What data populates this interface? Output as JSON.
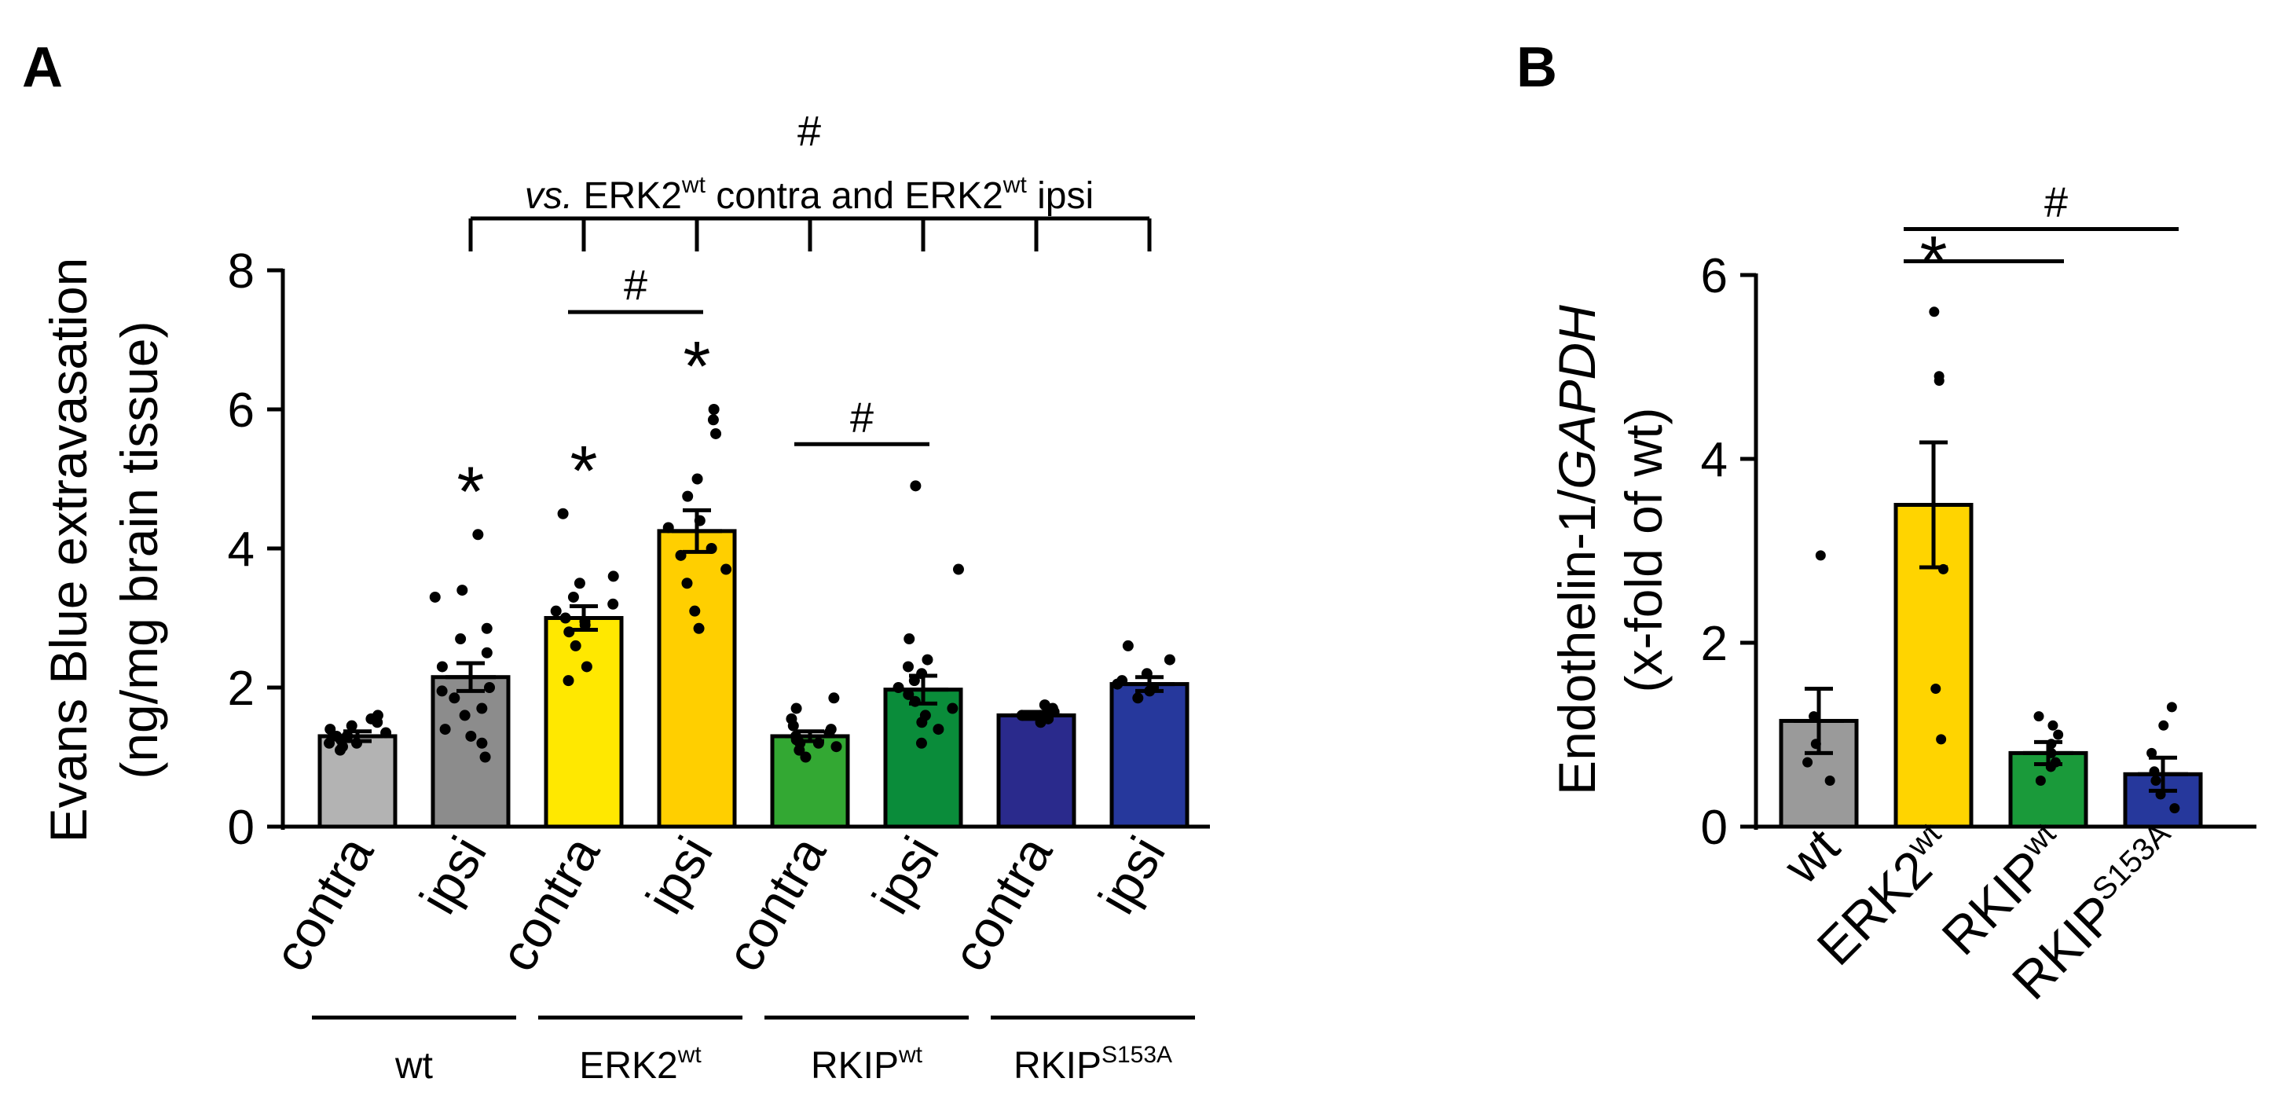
{
  "chart_data": [
    {
      "panel": "A",
      "type": "bar",
      "ylabel_line1": "Evans Blue extravasation",
      "ylabel_line2": "(ng/mg brain tissue)",
      "ylim": [
        0,
        8
      ],
      "yticks": [
        "0",
        "2",
        "4",
        "6",
        "8"
      ],
      "categories": [
        "contra",
        "ipsi",
        "contra",
        "ipsi",
        "contra",
        "ipsi",
        "contra",
        "ipsi"
      ],
      "values": [
        1.3,
        2.15,
        3.0,
        4.25,
        1.3,
        1.97,
        1.6,
        2.05
      ],
      "errors": [
        0.07,
        0.2,
        0.17,
        0.3,
        0.07,
        0.2,
        0.05,
        0.1
      ],
      "colors": [
        "#b3b3b3",
        "#8c8c8c",
        "#ffe800",
        "#ffcf00",
        "#33a833",
        "#0a8c3a",
        "#2a2a8c",
        "#26389c"
      ],
      "points": [
        [
          1.1,
          1.15,
          1.2,
          1.25,
          1.3,
          1.3,
          1.35,
          1.4,
          1.45,
          1.5,
          1.55,
          1.6,
          1.2,
          1.3
        ],
        [
          1.0,
          1.2,
          1.4,
          1.6,
          1.7,
          1.85,
          2.0,
          2.3,
          2.5,
          2.7,
          2.85,
          3.3,
          3.4,
          4.2,
          1.3,
          1.95
        ],
        [
          2.1,
          2.3,
          2.6,
          2.8,
          2.9,
          3.0,
          3.1,
          3.2,
          3.3,
          3.5,
          3.6,
          4.5,
          2.95
        ],
        [
          2.85,
          3.1,
          3.5,
          3.7,
          3.9,
          4.0,
          4.3,
          4.4,
          4.75,
          5.0,
          5.65,
          5.85,
          6.0
        ],
        [
          1.0,
          1.1,
          1.15,
          1.2,
          1.25,
          1.3,
          1.35,
          1.4,
          1.45,
          1.55,
          1.7,
          1.85,
          1.2
        ],
        [
          1.2,
          1.4,
          1.6,
          1.7,
          1.8,
          1.9,
          2.0,
          2.1,
          2.3,
          2.4,
          2.7,
          3.7,
          4.9,
          1.5,
          2.2
        ],
        [
          1.5,
          1.55,
          1.6,
          1.65,
          1.7,
          1.75,
          1.6,
          1.65
        ],
        [
          1.85,
          1.95,
          2.0,
          2.1,
          2.2,
          2.4,
          2.6,
          2.05
        ]
      ],
      "stars": [
        "",
        "*",
        "*",
        "*",
        "",
        "",
        "",
        ""
      ],
      "groups": [
        {
          "label": "wt",
          "sup": ""
        },
        {
          "label": "ERK2",
          "sup": "wt"
        },
        {
          "label": "RKIP",
          "sup": "wt"
        },
        {
          "label": "RKIP",
          "sup": "S153A"
        }
      ],
      "annotation_hash": "#",
      "annotation_vs": "vs.",
      "annotation_erk1": "ERK2",
      "annotation_sup1": "wt",
      "annotation_mid": " contra and ERK2",
      "annotation_sup2": "wt",
      "annotation_end": " ipsi",
      "pair_brackets": [
        {
          "from": 2,
          "to": 3,
          "label": "#"
        },
        {
          "from": 4,
          "to": 5,
          "label": "#"
        }
      ]
    },
    {
      "panel": "B",
      "type": "bar",
      "ylabel_line1_a": "Endothelin-1/",
      "ylabel_line1_b": "GAPDH",
      "ylabel_line2": "(x-fold of wt)",
      "ylim": [
        0,
        6
      ],
      "yticks": [
        "0",
        "2",
        "4",
        "6"
      ],
      "categories": [
        {
          "label": "wt",
          "sup": ""
        },
        {
          "label": "ERK2",
          "sup": "wt"
        },
        {
          "label": "RKIP",
          "sup": "wt"
        },
        {
          "label": "RKIP",
          "sup": "S153A"
        }
      ],
      "values": [
        1.15,
        3.5,
        0.8,
        0.57
      ],
      "errors": [
        0.35,
        0.68,
        0.12,
        0.18
      ],
      "colors": [
        "#9a9a9a",
        "#ffd400",
        "#1a9a3a",
        "#26389c"
      ],
      "points": [
        [
          0.5,
          0.7,
          0.9,
          1.2,
          2.95
        ],
        [
          0.95,
          1.5,
          2.8,
          4.85,
          4.9,
          5.6
        ],
        [
          0.5,
          0.65,
          0.7,
          0.8,
          0.9,
          1.0,
          1.1,
          1.2
        ],
        [
          0.2,
          0.35,
          0.5,
          0.6,
          0.8,
          1.1,
          1.3
        ]
      ],
      "stars": [
        "",
        "*",
        "",
        ""
      ],
      "hash": "#"
    }
  ],
  "panel_letters": [
    "A",
    "B"
  ]
}
